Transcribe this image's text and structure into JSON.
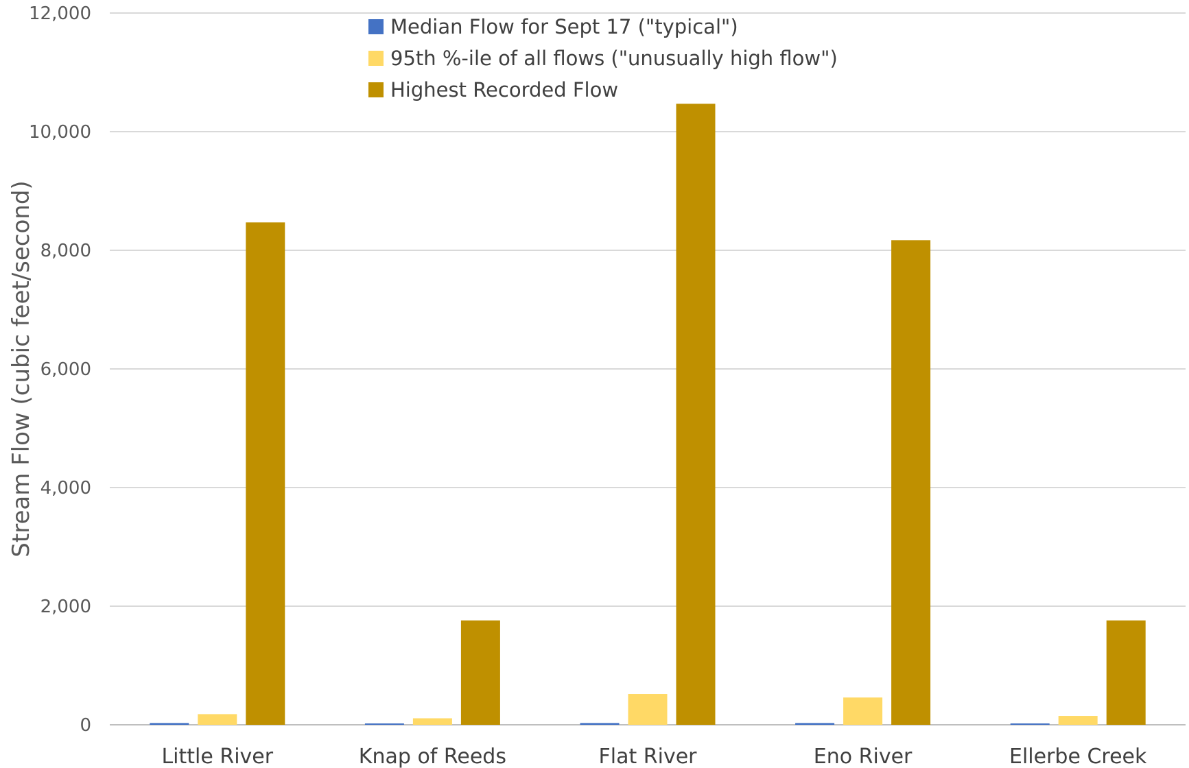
{
  "chart_data": {
    "type": "bar",
    "ylabel": "Stream Flow (cubic feet/second)",
    "ylim": [
      0,
      12000
    ],
    "yticks": [
      0,
      2000,
      4000,
      6000,
      8000,
      10000,
      12000
    ],
    "ytick_labels": [
      "0",
      "2,000",
      "4,000",
      "6,000",
      "8,000",
      "10,000",
      "12,000"
    ],
    "grid": true,
    "legend_position": "top-center",
    "categories": [
      "Little River",
      "Knap of Reeds",
      "Flat River",
      "Eno River",
      "Ellerbe Creek"
    ],
    "series": [
      {
        "name": "Median Flow for Sept 17 (\"typical\")",
        "color": "#4472c4",
        "values": [
          30,
          20,
          30,
          30,
          20
        ]
      },
      {
        "name": "95th %-ile of all flows (\"unusually high flow\")",
        "color": "#ffd966",
        "values": [
          180,
          110,
          520,
          460,
          150
        ]
      },
      {
        "name": "Highest Recorded Flow",
        "color": "#bf9000",
        "values": [
          8470,
          1760,
          10470,
          8170,
          1760
        ]
      }
    ]
  }
}
